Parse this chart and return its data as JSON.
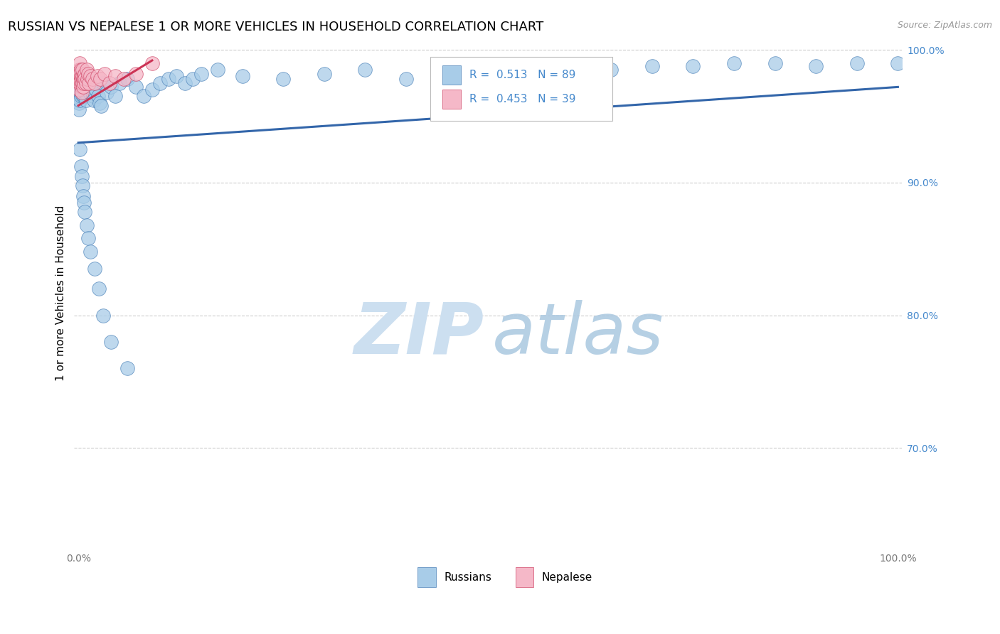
{
  "title": "RUSSIAN VS NEPALESE 1 OR MORE VEHICLES IN HOUSEHOLD CORRELATION CHART",
  "source": "Source: ZipAtlas.com",
  "ylabel": "1 or more Vehicles in Household",
  "russian_r": "0.513",
  "russian_n": "89",
  "nepalese_r": "0.453",
  "nepalese_n": "39",
  "russian_color": "#a8cce8",
  "nepalese_color": "#f5b8c8",
  "russian_edge_color": "#4a80b8",
  "nepalese_edge_color": "#d04868",
  "russian_line_color": "#3366aa",
  "nepalese_line_color": "#cc3355",
  "grid_color": "#cccccc",
  "right_tick_color": "#4488cc",
  "title_fontsize": 13,
  "source_fontsize": 9,
  "tick_fontsize": 10,
  "legend_fontsize": 11,
  "ylabel_fontsize": 11,
  "watermark_fontsize": 72,
  "rus_x": [
    0.001,
    0.001,
    0.001,
    0.001,
    0.001,
    0.002,
    0.002,
    0.002,
    0.002,
    0.003,
    0.003,
    0.003,
    0.003,
    0.004,
    0.004,
    0.004,
    0.005,
    0.005,
    0.005,
    0.006,
    0.006,
    0.007,
    0.007,
    0.008,
    0.008,
    0.009,
    0.01,
    0.01,
    0.011,
    0.012,
    0.013,
    0.014,
    0.015,
    0.016,
    0.017,
    0.018,
    0.019,
    0.02,
    0.022,
    0.024,
    0.026,
    0.028,
    0.03,
    0.035,
    0.04,
    0.045,
    0.05,
    0.06,
    0.07,
    0.08,
    0.09,
    0.1,
    0.11,
    0.12,
    0.13,
    0.14,
    0.15,
    0.17,
    0.2,
    0.25,
    0.3,
    0.35,
    0.4,
    0.5,
    0.55,
    0.6,
    0.65,
    0.7,
    0.75,
    0.8,
    0.85,
    0.9,
    0.95,
    1.0,
    0.002,
    0.003,
    0.004,
    0.005,
    0.006,
    0.007,
    0.008,
    0.01,
    0.012,
    0.015,
    0.02,
    0.025,
    0.03,
    0.04,
    0.06
  ],
  "rus_y": [
    0.97,
    0.975,
    0.965,
    0.96,
    0.955,
    0.98,
    0.975,
    0.968,
    0.962,
    0.985,
    0.978,
    0.972,
    0.965,
    0.98,
    0.975,
    0.968,
    0.978,
    0.972,
    0.966,
    0.975,
    0.97,
    0.972,
    0.965,
    0.975,
    0.968,
    0.962,
    0.98,
    0.975,
    0.97,
    0.975,
    0.972,
    0.968,
    0.978,
    0.975,
    0.97,
    0.965,
    0.962,
    0.975,
    0.97,
    0.965,
    0.96,
    0.958,
    0.975,
    0.968,
    0.972,
    0.965,
    0.975,
    0.978,
    0.972,
    0.965,
    0.97,
    0.975,
    0.978,
    0.98,
    0.975,
    0.978,
    0.982,
    0.985,
    0.98,
    0.978,
    0.982,
    0.985,
    0.978,
    0.985,
    0.982,
    0.988,
    0.985,
    0.988,
    0.988,
    0.99,
    0.99,
    0.988,
    0.99,
    0.99,
    0.925,
    0.912,
    0.905,
    0.898,
    0.89,
    0.885,
    0.878,
    0.868,
    0.858,
    0.848,
    0.835,
    0.82,
    0.8,
    0.78,
    0.76
  ],
  "nep_x": [
    0.001,
    0.001,
    0.001,
    0.001,
    0.002,
    0.002,
    0.002,
    0.002,
    0.003,
    0.003,
    0.003,
    0.004,
    0.004,
    0.004,
    0.005,
    0.005,
    0.005,
    0.006,
    0.006,
    0.007,
    0.007,
    0.008,
    0.008,
    0.009,
    0.01,
    0.011,
    0.012,
    0.013,
    0.015,
    0.017,
    0.02,
    0.023,
    0.027,
    0.032,
    0.038,
    0.045,
    0.055,
    0.07,
    0.09
  ],
  "nep_y": [
    0.98,
    0.975,
    0.985,
    0.97,
    0.978,
    0.982,
    0.975,
    0.99,
    0.98,
    0.975,
    0.985,
    0.978,
    0.972,
    0.968,
    0.98,
    0.975,
    0.985,
    0.978,
    0.972,
    0.98,
    0.975,
    0.982,
    0.978,
    0.975,
    0.985,
    0.978,
    0.982,
    0.975,
    0.98,
    0.978,
    0.975,
    0.98,
    0.978,
    0.982,
    0.975,
    0.98,
    0.978,
    0.982,
    0.99
  ],
  "ylim_min": 0.625,
  "ylim_max": 1.008,
  "xlim_min": -0.005,
  "xlim_max": 1.005
}
